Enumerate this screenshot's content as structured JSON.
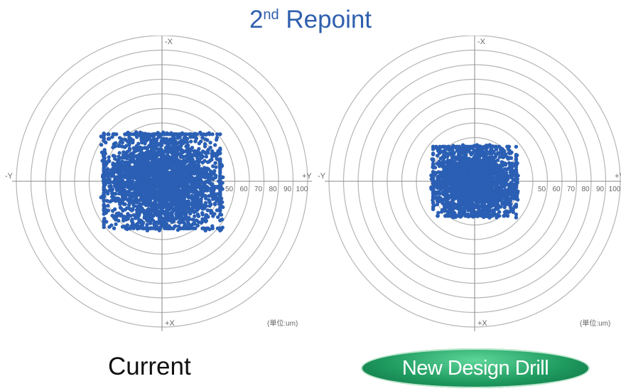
{
  "title": {
    "main": "2",
    "sup": "nd",
    "rest": " Repoint"
  },
  "labels": {
    "current": "Current",
    "new_design": "New Design Drill"
  },
  "colors": {
    "title": "#2f5fae",
    "points": "#2a5fb4",
    "rings": "#b5b5b5",
    "badge": "#1f9b60"
  },
  "chart_data": [
    {
      "type": "scatter",
      "name": "Current",
      "axis_labels": {
        "top": "-X",
        "bottom": "+X",
        "left": "-Y",
        "right": "+Y"
      },
      "ring_tick_labels": [
        "50",
        "60",
        "70",
        "80",
        "90",
        "100"
      ],
      "unit_label": "(単位:um)",
      "radial_range": [
        0,
        100
      ],
      "ring_step": 10,
      "cluster": {
        "center": [
          0,
          0
        ],
        "spread_y": 42,
        "spread_x": 34,
        "point_count": 3000
      }
    },
    {
      "type": "scatter",
      "name": "New Design Drill",
      "axis_labels": {
        "top": "-X",
        "bottom": "+X",
        "left": "-Y",
        "right": "+Y"
      },
      "ring_tick_labels": [
        "50",
        "60",
        "70",
        "80",
        "90",
        "100"
      ],
      "unit_label": "(単位:um)",
      "radial_range": [
        0,
        100
      ],
      "ring_step": 10,
      "cluster": {
        "center": [
          0,
          0
        ],
        "spread_y": 30,
        "spread_x": 25,
        "point_count": 2400
      }
    }
  ]
}
